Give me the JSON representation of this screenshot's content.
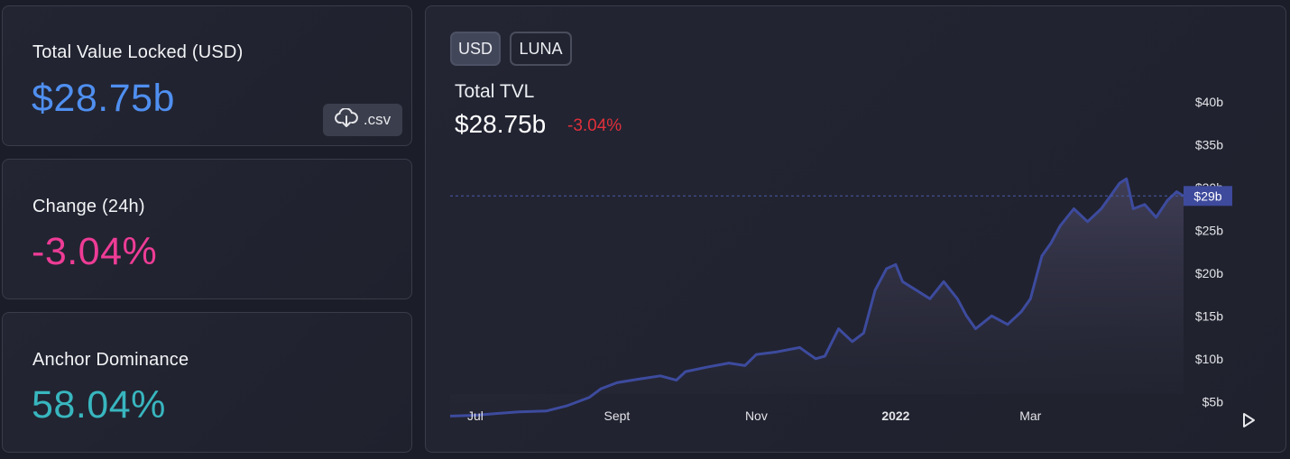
{
  "stats": [
    {
      "title": "Total Value Locked (USD)",
      "value": "$28.75b",
      "color": "#4f8ff0"
    },
    {
      "title": "Change (24h)",
      "value": "-3.04%",
      "color": "#ee3c96"
    },
    {
      "title": "Anchor Dominance",
      "value": "58.04%",
      "color": "#38b6bf"
    }
  ],
  "csv_button": {
    "label": ".csv",
    "icon": "cloud-download-icon"
  },
  "toggles": [
    {
      "label": "USD",
      "active": true
    },
    {
      "label": "LUNA",
      "active": false
    }
  ],
  "chart_header": {
    "title": "Total TVL",
    "value": "$28.75b",
    "change": "-3.04%"
  },
  "chart_data": {
    "type": "area",
    "title": "Total TVL",
    "x_tick_labels": [
      "Jul",
      "Sept",
      "Nov",
      "2022",
      "Mar"
    ],
    "y_tick_labels": [
      "$40b",
      "$35b",
      "$30b",
      "$25b",
      "$20b",
      "$15b",
      "$10b",
      "$5b"
    ],
    "y_ticks": [
      40,
      35,
      30,
      25,
      20,
      15,
      10,
      5
    ],
    "ylim": [
      2.4,
      42.4
    ],
    "current_value_label": "$29b",
    "current_value": 29,
    "line_color": "#3d4b9e",
    "x": [
      "2021-06-20",
      "2021-07-01",
      "2021-07-10",
      "2021-07-20",
      "2021-08-01",
      "2021-08-10",
      "2021-08-20",
      "2021-08-25",
      "2021-09-01",
      "2021-09-10",
      "2021-09-20",
      "2021-09-27",
      "2021-10-01",
      "2021-10-10",
      "2021-10-20",
      "2021-10-27",
      "2021-11-01",
      "2021-11-10",
      "2021-11-20",
      "2021-11-27",
      "2021-12-01",
      "2021-12-07",
      "2021-12-13",
      "2021-12-18",
      "2021-12-23",
      "2021-12-28",
      "2022-01-01",
      "2022-01-04",
      "2022-01-10",
      "2022-01-16",
      "2022-01-22",
      "2022-01-28",
      "2022-02-01",
      "2022-02-05",
      "2022-02-12",
      "2022-02-19",
      "2022-02-25",
      "2022-03-01",
      "2022-03-06",
      "2022-03-10",
      "2022-03-14",
      "2022-03-20",
      "2022-03-26",
      "2022-04-01",
      "2022-04-05",
      "2022-04-09",
      "2022-04-12",
      "2022-04-15",
      "2022-04-20",
      "2022-04-25",
      "2022-04-30",
      "2022-05-04",
      "2022-05-07"
    ],
    "values": [
      3.3,
      3.4,
      3.6,
      3.8,
      3.9,
      4.5,
      5.5,
      6.5,
      7.2,
      7.6,
      8.0,
      7.5,
      8.5,
      9.0,
      9.5,
      9.2,
      10.5,
      10.8,
      11.3,
      10.0,
      10.3,
      13.5,
      12.0,
      13.0,
      18.0,
      20.5,
      21.0,
      19.0,
      18.0,
      17.0,
      19.0,
      17.0,
      15.0,
      13.5,
      15.0,
      14.0,
      15.5,
      17.0,
      22.0,
      23.5,
      25.5,
      27.5,
      26.0,
      27.5,
      29.0,
      30.5,
      31.0,
      27.5,
      28.0,
      26.5,
      28.5,
      29.5,
      29.0
    ]
  }
}
